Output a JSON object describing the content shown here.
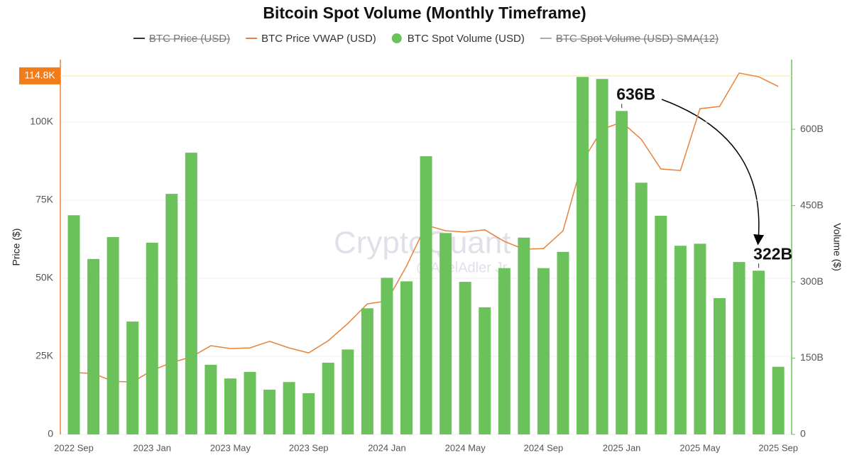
{
  "chart_data": {
    "type": "combo",
    "title": "Bitcoin Spot Volume (Monthly Timeframe)",
    "ylabel": "Price ($)",
    "y2label": "Volume ($)",
    "watermarks": [
      "CryptoQuant",
      "@AxelAdler Jr"
    ],
    "categories": [
      "2022 Sep",
      null,
      null,
      null,
      "2023 Jan",
      null,
      null,
      null,
      "2023 May",
      null,
      null,
      null,
      "2023 Sep",
      null,
      null,
      null,
      "2024 Jan",
      null,
      null,
      null,
      "2024 May",
      null,
      null,
      null,
      "2024 Sep",
      null,
      null,
      null,
      "2025 Jan",
      null,
      null,
      null,
      "2025 May",
      null,
      null,
      null,
      "2025 Sep"
    ],
    "ylim": [
      0,
      120000
    ],
    "yticks": [
      0,
      {
        "value": 25000,
        "label": "25K"
      },
      {
        "value": 50000,
        "label": "50K"
      },
      {
        "value": 75000,
        "label": "75K"
      },
      {
        "value": 100000,
        "label": "100K"
      }
    ],
    "y2lim": [
      0,
      737
    ],
    "y2ticks": [
      0,
      {
        "value": 150,
        "label": "150B"
      },
      {
        "value": 300,
        "label": "300B"
      },
      {
        "value": 450,
        "label": "450B"
      },
      {
        "value": 600,
        "label": "600B"
      }
    ],
    "grid": true,
    "reference_line": {
      "value": 114800,
      "label": "114.8K",
      "color": "#f07d1a"
    },
    "series": [
      {
        "name": "BTC Price (USD)",
        "type": "line",
        "color": "#333333",
        "visible": false
      },
      {
        "name": "BTC Price VWAP (USD)",
        "type": "line",
        "color": "#e8823a",
        "axis": "y",
        "values": [
          19800,
          19500,
          17000,
          16800,
          20500,
          23000,
          24800,
          28400,
          27500,
          27700,
          29800,
          27700,
          26100,
          30000,
          35500,
          41800,
          42700,
          53900,
          67000,
          65200,
          64800,
          65500,
          61800,
          59300,
          59500,
          65200,
          87500,
          97700,
          100000,
          94500,
          85000,
          84500,
          104300,
          105000,
          115700,
          114500,
          111400
        ]
      },
      {
        "name": "BTC Spot Volume (USD)",
        "type": "bar",
        "color": "#6cc25a",
        "axis": "y2",
        "values": [
          431,
          345,
          388,
          222,
          377,
          473,
          554,
          137,
          110,
          123,
          88,
          103,
          81,
          141,
          167,
          248,
          308,
          301,
          547,
          396,
          300,
          250,
          327,
          387,
          327,
          359,
          703,
          699,
          636,
          495,
          430,
          371,
          375,
          268,
          339,
          322,
          133
        ],
        "value_labels": [
          null,
          null,
          null,
          null,
          null,
          null,
          null,
          null,
          null,
          null,
          null,
          null,
          null,
          null,
          null,
          null,
          null,
          null,
          null,
          null,
          null,
          null,
          null,
          null,
          null,
          null,
          null,
          null,
          "636B",
          null,
          null,
          null,
          null,
          null,
          null,
          "322B",
          null
        ]
      },
      {
        "name": "BTC Spot Volume (USD)-SMA(12)",
        "type": "line",
        "color": "#aaaaaa",
        "visible": false
      }
    ]
  }
}
